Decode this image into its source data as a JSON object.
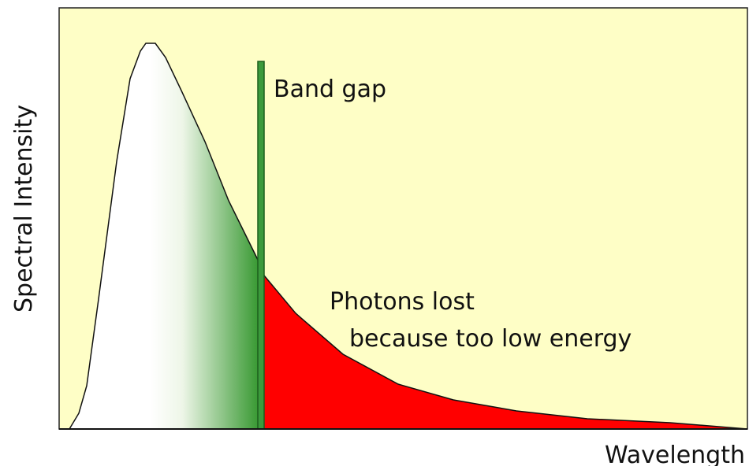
{
  "axes": {
    "y_label": "Spectral Intensity",
    "x_label": "Wavelength"
  },
  "annotations": {
    "band_gap": "Band gap",
    "lost_line1": "Photons lost",
    "lost_line2": "because too low energy"
  }
}
